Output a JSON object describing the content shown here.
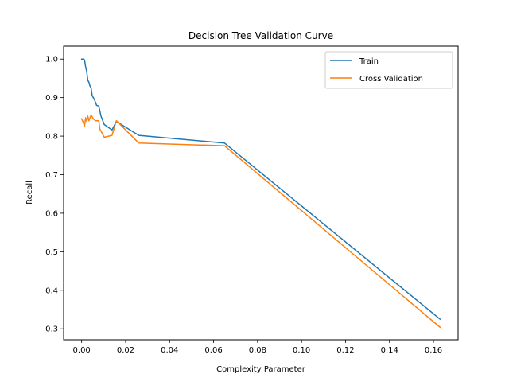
{
  "chart_data": {
    "type": "line",
    "title": "Decision Tree Validation Curve",
    "xlabel": "Complexity Parameter",
    "ylabel": "Recall",
    "xlim": [
      -0.0082,
      0.1712
    ],
    "ylim": [
      0.2715,
      1.0335
    ],
    "xticks": [
      0.0,
      0.02,
      0.04,
      0.06,
      0.08,
      0.1,
      0.12,
      0.14,
      0.16
    ],
    "xtick_labels": [
      "0.00",
      "0.02",
      "0.04",
      "0.06",
      "0.08",
      "0.10",
      "0.12",
      "0.14",
      "0.16"
    ],
    "yticks": [
      0.3,
      0.4,
      0.5,
      0.6,
      0.7,
      0.8,
      0.9,
      1.0
    ],
    "ytick_labels": [
      "0.3",
      "0.4",
      "0.5",
      "0.6",
      "0.7",
      "0.8",
      "0.9",
      "1.0"
    ],
    "grid": false,
    "legend_position": "upper-right",
    "series": [
      {
        "name": "Train",
        "color": "#1f77b4",
        "x": [
          0.0,
          0.0008,
          0.0013,
          0.0018,
          0.0023,
          0.0028,
          0.0033,
          0.0038,
          0.0043,
          0.0048,
          0.0058,
          0.0068,
          0.0078,
          0.0088,
          0.0103,
          0.0138,
          0.0158,
          0.026,
          0.065,
          0.163
        ],
        "y": [
          1.0,
          1.0,
          0.998,
          0.98,
          0.968,
          0.945,
          0.94,
          0.93,
          0.925,
          0.905,
          0.895,
          0.88,
          0.878,
          0.852,
          0.83,
          0.816,
          0.838,
          0.802,
          0.782,
          0.325
        ]
      },
      {
        "name": "Cross Validation",
        "color": "#ff7f0e",
        "x": [
          0.0,
          0.0008,
          0.0013,
          0.0018,
          0.0023,
          0.0028,
          0.0033,
          0.0043,
          0.0053,
          0.0063,
          0.0078,
          0.0083,
          0.0103,
          0.0138,
          0.0158,
          0.026,
          0.065,
          0.163
        ],
        "y": [
          0.845,
          0.835,
          0.825,
          0.848,
          0.838,
          0.852,
          0.84,
          0.855,
          0.845,
          0.84,
          0.84,
          0.818,
          0.797,
          0.802,
          0.84,
          0.782,
          0.775,
          0.304
        ]
      }
    ]
  }
}
